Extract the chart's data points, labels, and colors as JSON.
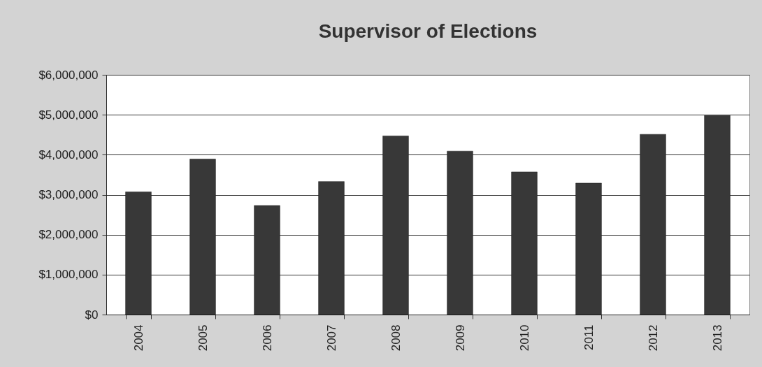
{
  "chart_data": {
    "type": "bar",
    "title": "Supervisor of Elections",
    "categories": [
      "2004",
      "2005",
      "2006",
      "2007",
      "2008",
      "2009",
      "2010",
      "2011",
      "2012",
      "2013"
    ],
    "values": [
      3070000,
      3890000,
      2730000,
      3330000,
      4470000,
      4090000,
      3570000,
      3290000,
      4510000,
      4980000
    ],
    "color": "#383838",
    "ylim": [
      0,
      6000000
    ],
    "yticks": [
      {
        "value": 0,
        "label": "$0"
      },
      {
        "value": 1000000,
        "label": "$1,000,000"
      },
      {
        "value": 2000000,
        "label": "$2,000,000"
      },
      {
        "value": 3000000,
        "label": "$3,000,000"
      },
      {
        "value": 4000000,
        "label": "$4,000,000"
      },
      {
        "value": 5000000,
        "label": "$5,000,000"
      },
      {
        "value": 6000000,
        "label": "$6,000,000"
      }
    ],
    "grid": "y"
  }
}
